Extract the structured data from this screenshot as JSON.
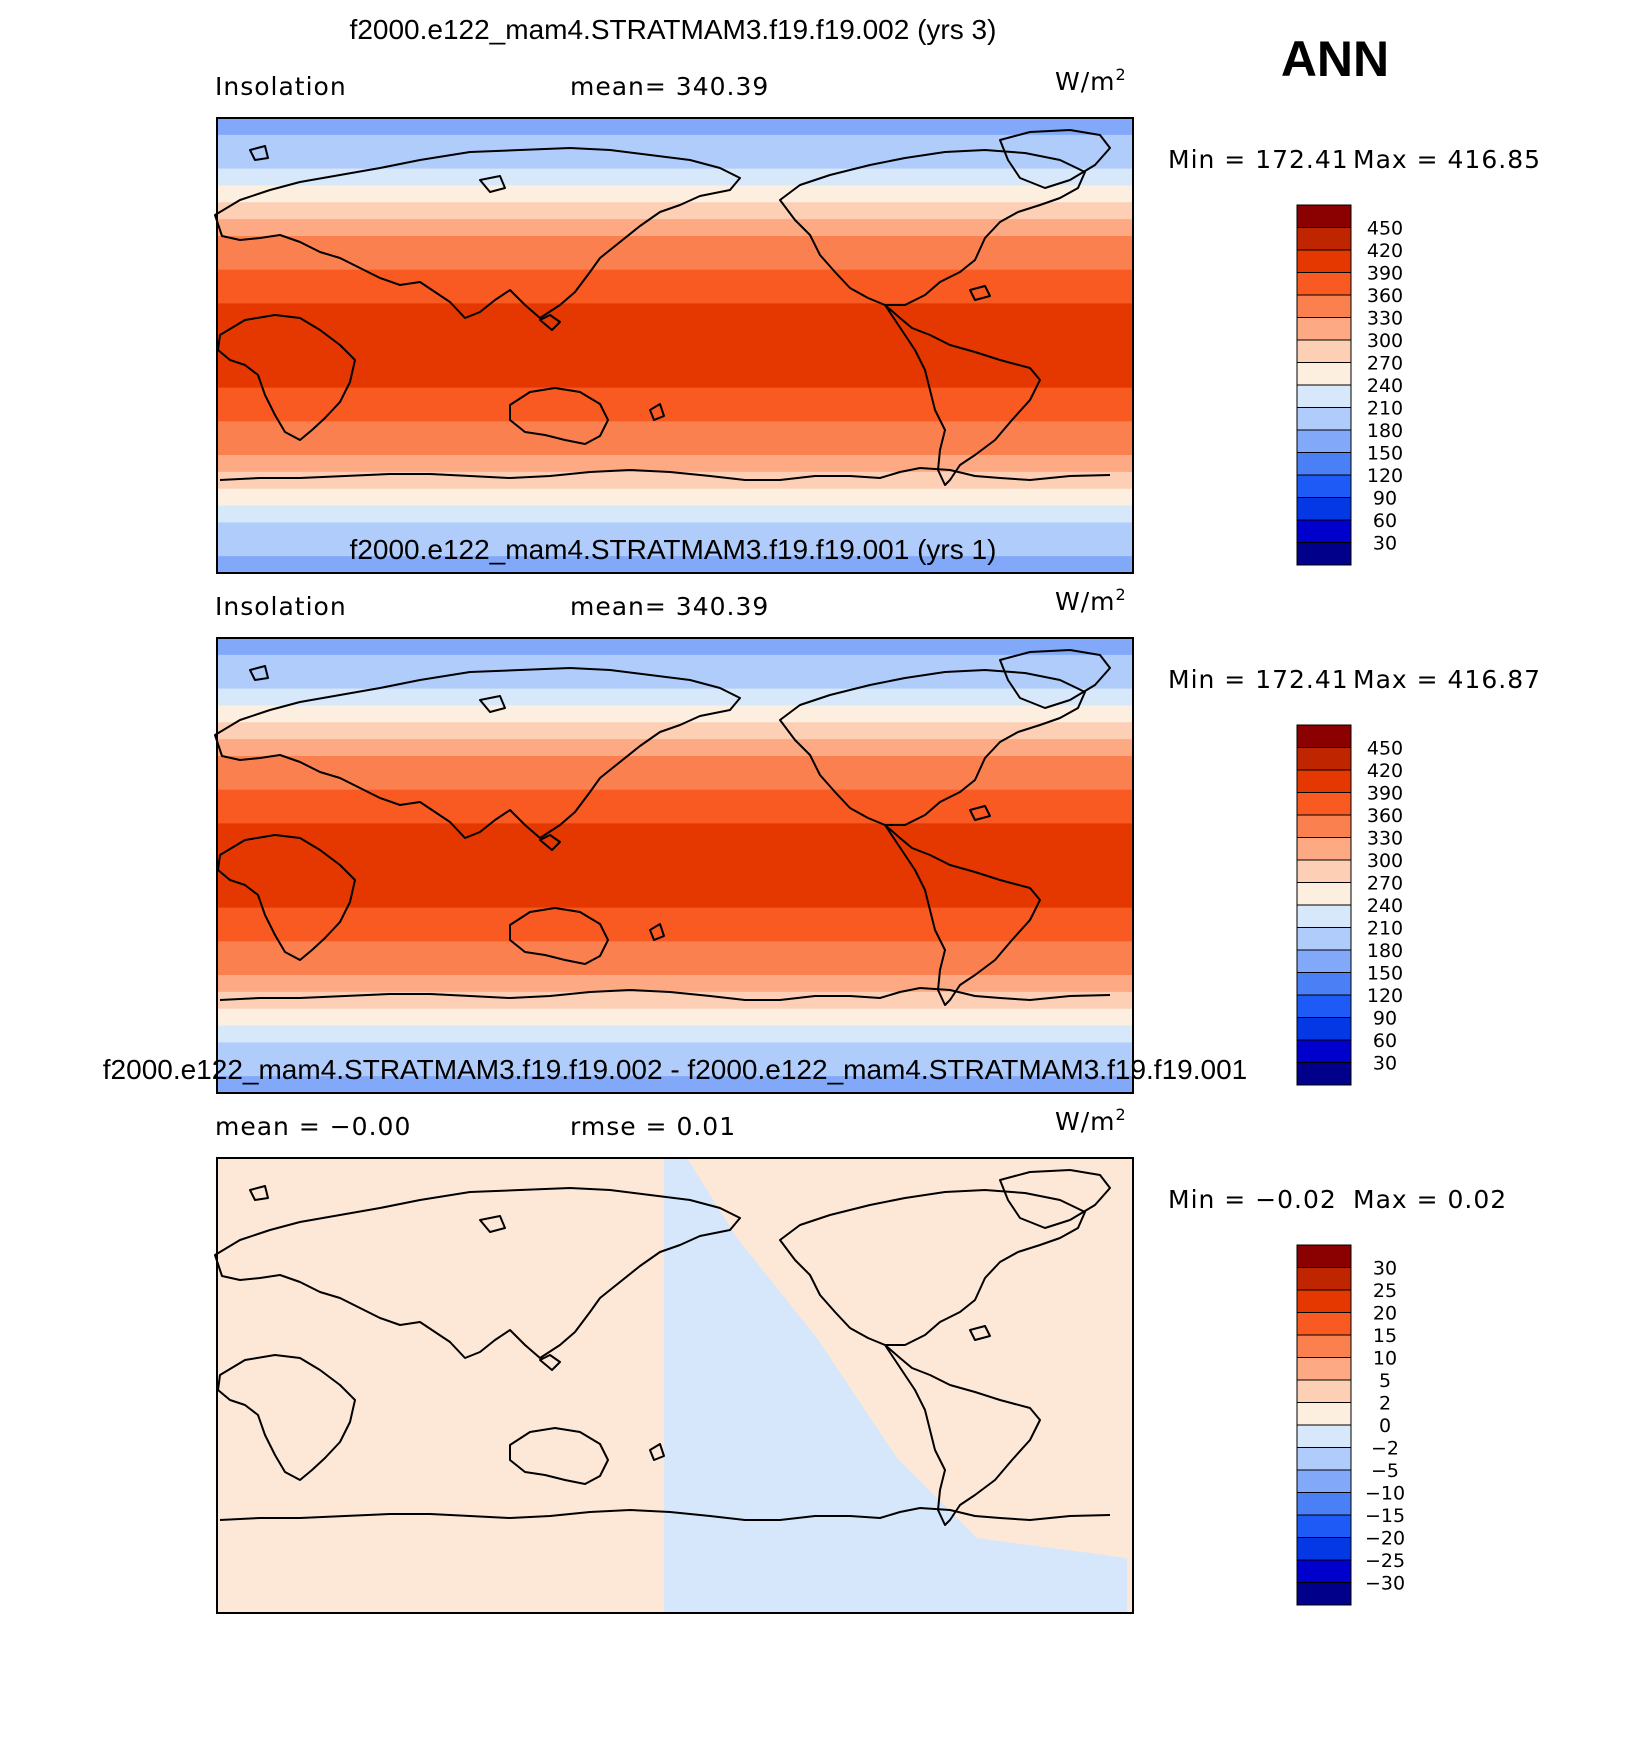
{
  "season": "ANN",
  "units": "W/m",
  "units_sup": "2",
  "colors": {
    "ramp13": [
      "#00008b",
      "#0000cd",
      "#0538e5",
      "#1e5af5",
      "#4a7ff5",
      "#82a8fa",
      "#b0ccfb",
      "#d7e8fb",
      "#fdefe0",
      "#fdcfb4",
      "#fdaa84",
      "#fb8050",
      "#f85a22",
      "#e53800",
      "#bf2600",
      "#8b0000"
    ],
    "diffLeft": "#fde8d7",
    "diffRight": "#d6e7fb"
  },
  "panels": [
    {
      "title": "f2000.e122_mam4.STRATMAM3.f19.f19.002 (yrs 3)",
      "variable": "Insolation",
      "mean_text": "mean=  340.39",
      "min_text": "Min  =  172.41",
      "max_text": "Max  =  416.85",
      "legend_labels": [
        "450",
        "420",
        "390",
        "360",
        "330",
        "300",
        "270",
        "240",
        "210",
        "180",
        "150",
        "120",
        "90",
        "60",
        "30"
      ]
    },
    {
      "title": "f2000.e122_mam4.STRATMAM3.f19.f19.001 (yrs 1)",
      "variable": "Insolation",
      "mean_text": "mean=  340.39",
      "min_text": "Min  =  172.41",
      "max_text": "Max  =  416.87",
      "legend_labels": [
        "450",
        "420",
        "390",
        "360",
        "330",
        "300",
        "270",
        "240",
        "210",
        "180",
        "150",
        "120",
        "90",
        "60",
        "30"
      ]
    },
    {
      "title": "f2000.e122_mam4.STRATMAM3.f19.f19.002 - f2000.e122_mam4.STRATMAM3.f19.f19.001",
      "variable": "mean =   −0.00",
      "mean_text": "rmse =    0.01",
      "min_text": "Min  =   −0.02",
      "max_text": "Max  =    0.02",
      "legend_labels": [
        "30",
        "25",
        "20",
        "15",
        "10",
        "5",
        "2",
        "0",
        "−2",
        "−5",
        "−10",
        "−15",
        "−20",
        "−25",
        "−30"
      ]
    }
  ]
}
